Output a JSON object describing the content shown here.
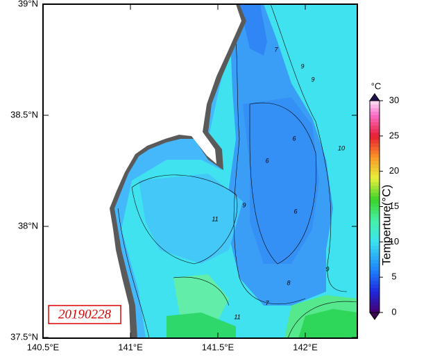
{
  "map": {
    "date": "20190228",
    "lat_labels": [
      "39°N",
      "38.5°N",
      "38°N",
      "37.5°N"
    ],
    "lon_labels": [
      "140.5°E",
      "141°E",
      "141.5°E",
      "142°E"
    ],
    "contour_labels": [
      9,
      9,
      7,
      6,
      6,
      10,
      9,
      11,
      6,
      8,
      7,
      11,
      9
    ],
    "colorbar": {
      "title": "Temperture(°C)",
      "unit": "°C",
      "range": [
        0,
        30
      ],
      "ticks": [
        0,
        5,
        10,
        15,
        20,
        25,
        30
      ]
    }
  }
}
